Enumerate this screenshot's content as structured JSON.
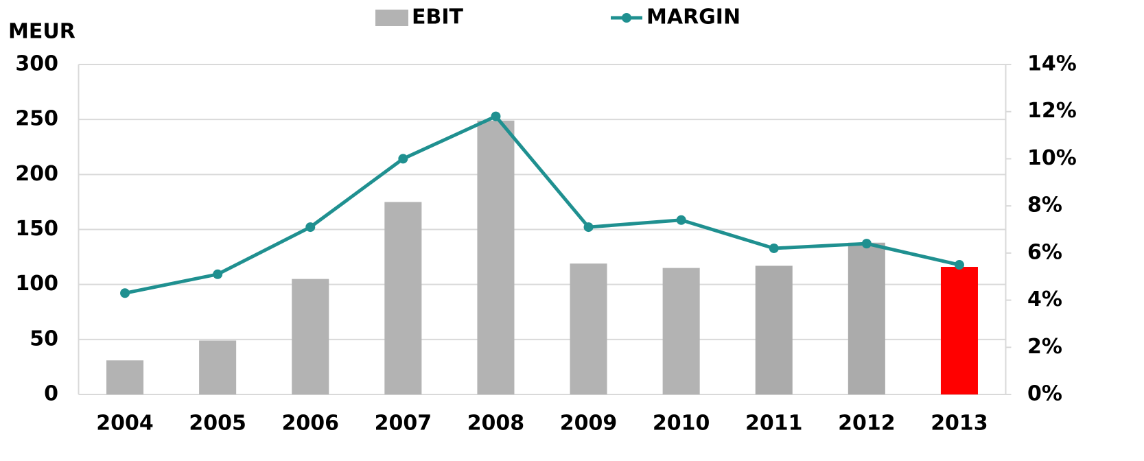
{
  "chart_data": {
    "type": "bar_line",
    "y_label": "MEUR",
    "categories": [
      "2004",
      "2005",
      "2006",
      "2007",
      "2008",
      "2009",
      "2010",
      "2011",
      "2012",
      "2013"
    ],
    "series": [
      {
        "name": "EBIT",
        "type": "bar",
        "color": "#b3b3b3",
        "colors": [
          "#b3b3b3",
          "#b3b3b3",
          "#b3b3b3",
          "#b3b3b3",
          "#b3b3b3",
          "#b3b3b3",
          "#b3b3b3",
          "#ababab",
          "#ababab",
          "#ff0000"
        ],
        "values": [
          31,
          49,
          105,
          175,
          249,
          119,
          115,
          117,
          138,
          116
        ]
      },
      {
        "name": "MARGIN",
        "type": "line",
        "axis": "y2",
        "color": "#1f9090",
        "values": [
          4.3,
          5.1,
          7.1,
          10.0,
          11.8,
          7.1,
          7.4,
          6.2,
          6.4,
          5.5
        ]
      }
    ],
    "ylim": [
      0,
      300
    ],
    "yticks": [
      0,
      50,
      100,
      150,
      200,
      250,
      300
    ],
    "y2lim": [
      0,
      14
    ],
    "y2ticks": [
      {
        "value": 0,
        "label": "0%"
      },
      {
        "value": 2,
        "label": "2%"
      },
      {
        "value": 4,
        "label": "4%"
      },
      {
        "value": 6,
        "label": "6%"
      },
      {
        "value": 8,
        "label": "8%"
      },
      {
        "value": 10,
        "label": "10%"
      },
      {
        "value": 12,
        "label": "12%"
      },
      {
        "value": 14,
        "label": "14%"
      }
    ],
    "grid": true,
    "legend": "top"
  }
}
